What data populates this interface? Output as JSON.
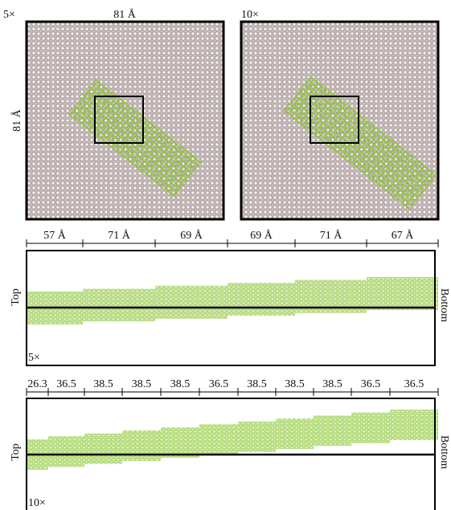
{
  "top_panels": [
    {
      "scale": "5×",
      "width_label": "81 Å",
      "height_label": "81 Å"
    },
    {
      "scale": "10×"
    }
  ],
  "strip_5x": {
    "segments": [
      "57 Å",
      "71 Å",
      "69 Å",
      "69 Å",
      "71 Å",
      "67 Å"
    ],
    "left_label": "Top",
    "right_label": "Bottom",
    "scale": "5×"
  },
  "strip_10x": {
    "segments": [
      "26.3",
      "36.5",
      "38.5",
      "38.5",
      "38.5",
      "36.5",
      "38.5",
      "38.5",
      "38.5",
      "36.5",
      "36.5"
    ],
    "left_label": "Top",
    "right_label": "Bottom",
    "scale": "10×"
  }
}
